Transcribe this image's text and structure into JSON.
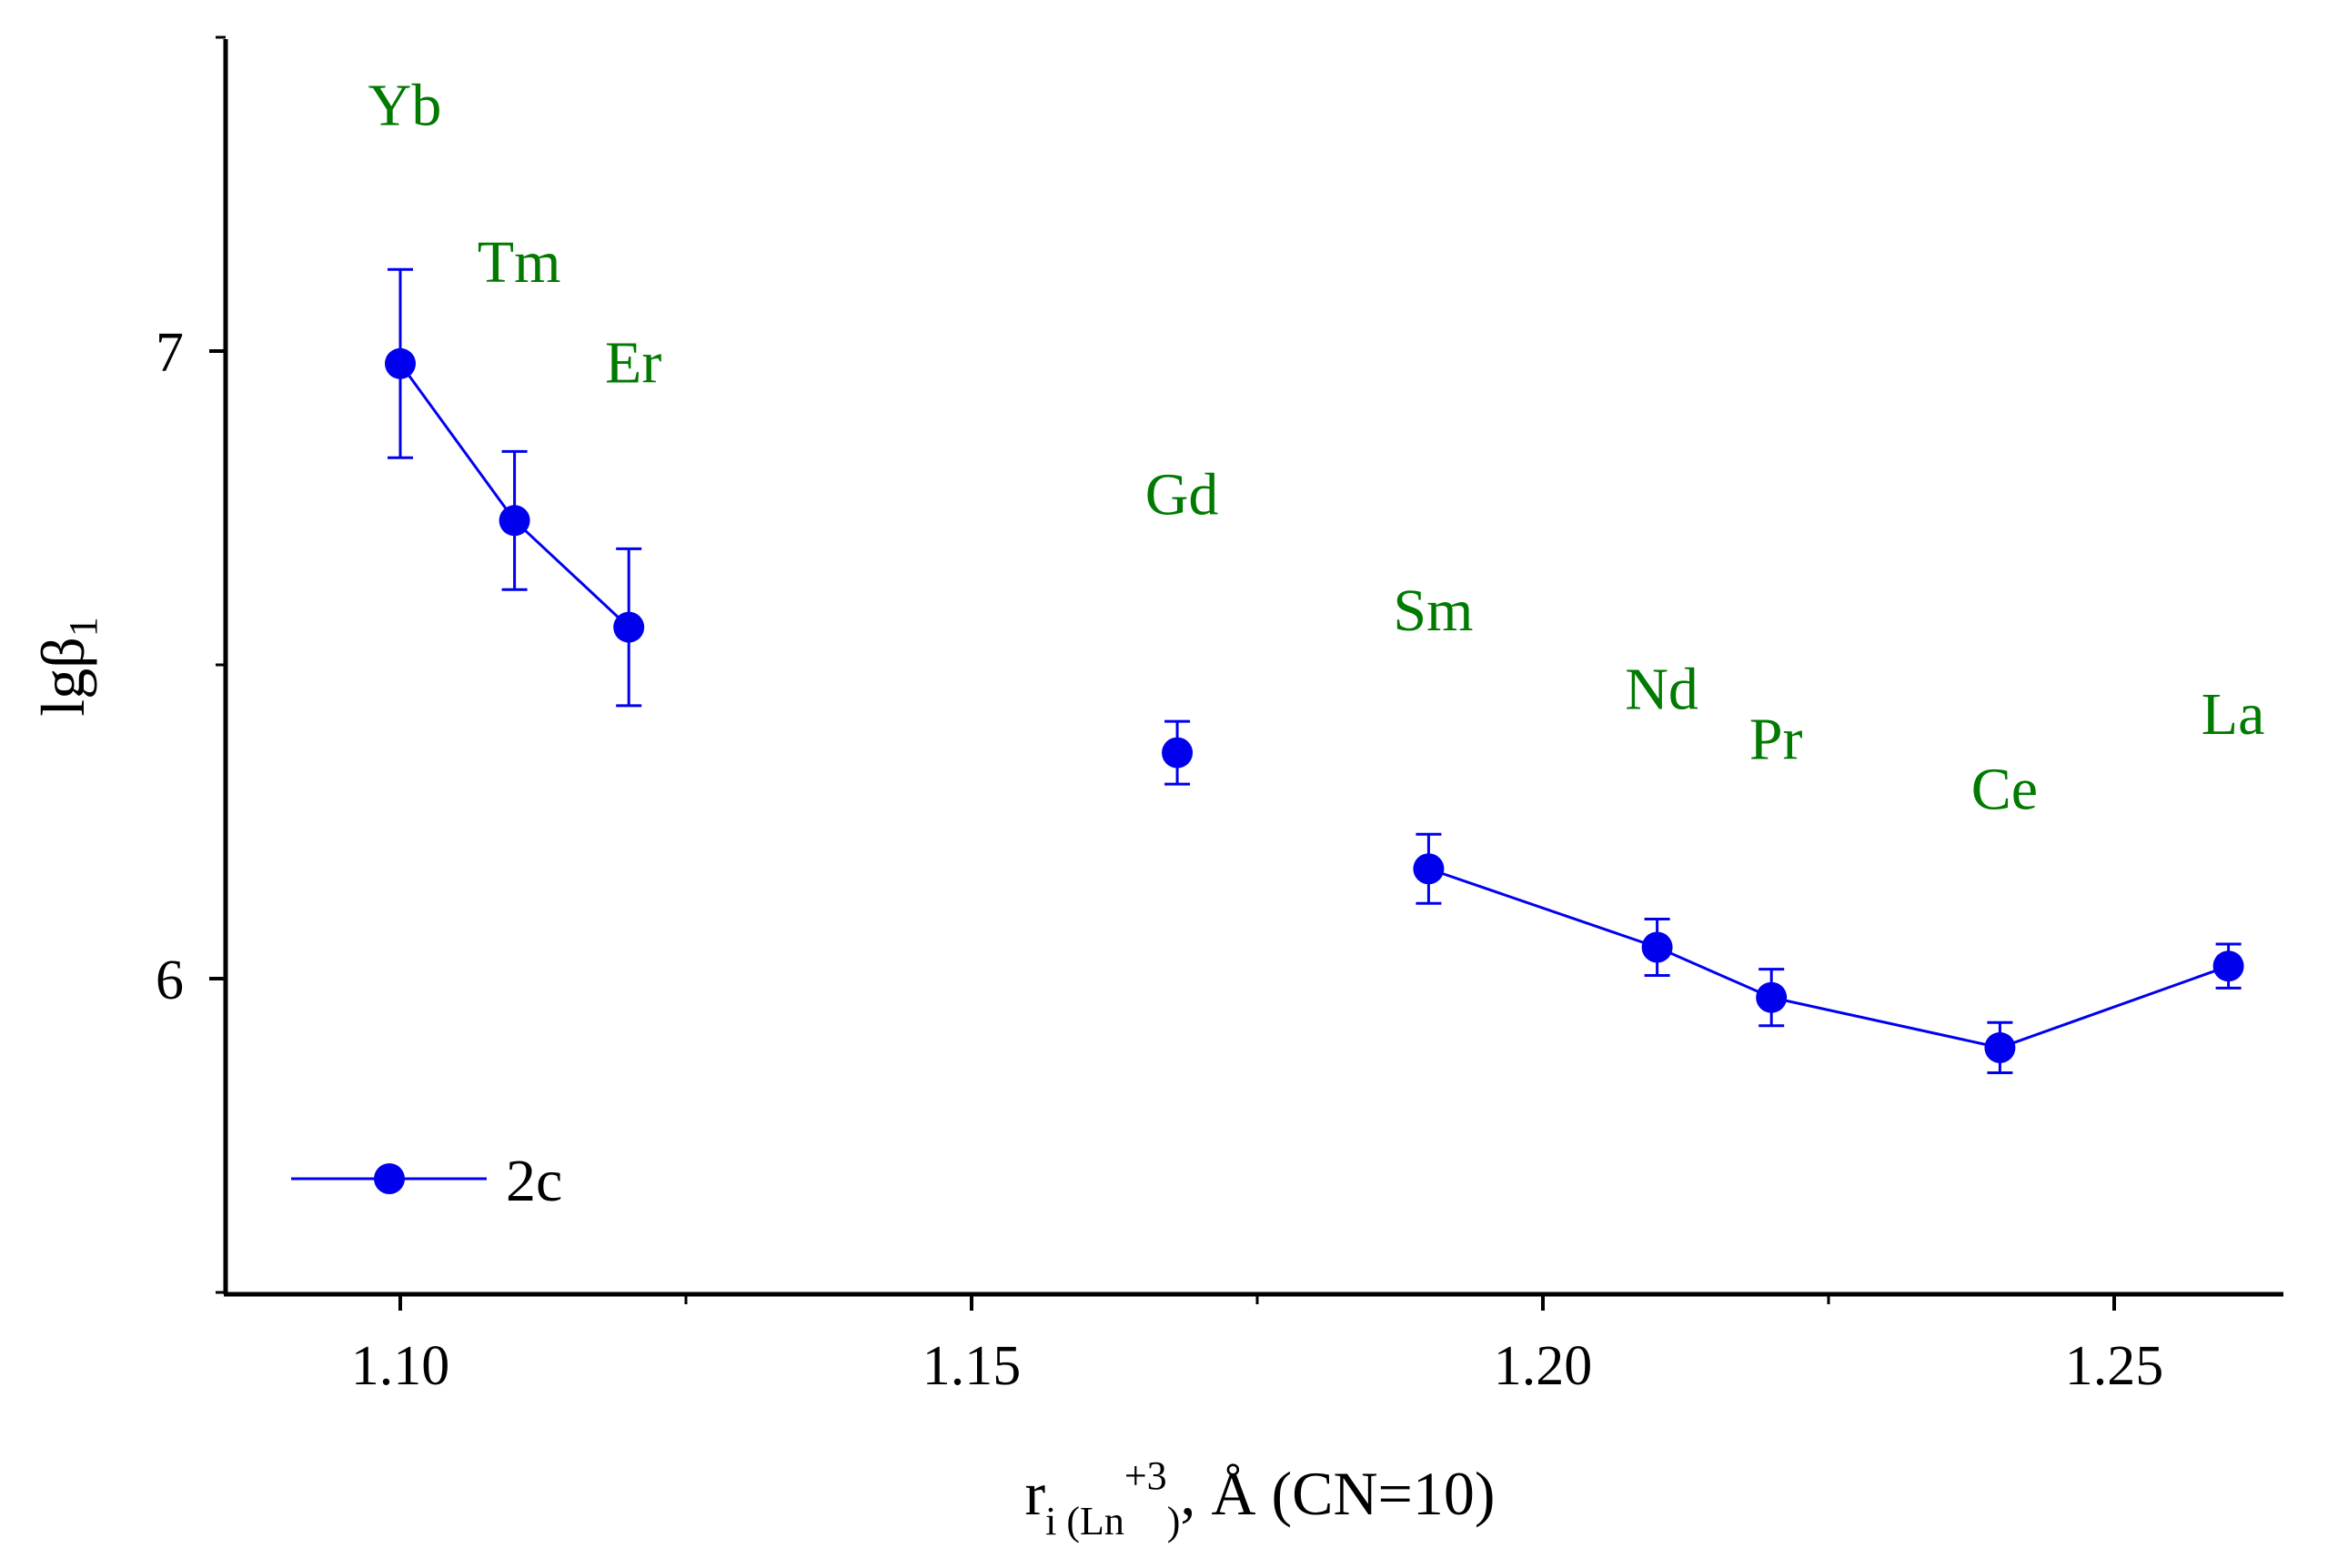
{
  "chart_data": {
    "type": "scatter",
    "title": "",
    "xlabel": "r i (Ln +3), Å (CN=10)",
    "xlabel_parts": {
      "base": "r",
      "sub": "i (Ln",
      "sup": "+3",
      "close": ")",
      "rest": ", Å (CN=10)"
    },
    "ylabel": "lgβ1",
    "ylabel_parts": {
      "base": "lgβ",
      "sub": "1"
    },
    "xlim": [
      1.084,
      1.265
    ],
    "ylim": [
      5.5,
      7.5
    ],
    "xticks": [
      1.1,
      1.15,
      1.2,
      1.25
    ],
    "xtick_labels": [
      "1.10",
      "1.15",
      "1.20",
      "1.25"
    ],
    "yticks": [
      6,
      7
    ],
    "ytick_labels": [
      "6",
      "7"
    ],
    "x_minor_step": 0.025,
    "y_minor_step": 0.5,
    "grid": false,
    "legend_position": "bottom-left",
    "series_color": "#0000ee",
    "label_color": "#007a00",
    "series": [
      {
        "name": "2c",
        "points": [
          {
            "label": "Yb",
            "x": 1.1,
            "y": 6.98,
            "err": 0.15,
            "label_y": 7.36
          },
          {
            "label": "Tm",
            "x": 1.11,
            "y": 6.73,
            "err": 0.11,
            "label_y": 7.11
          },
          {
            "label": "Er",
            "x": 1.12,
            "y": 6.56,
            "err": 0.125,
            "label_y": 6.95
          },
          {
            "label": "Gd",
            "x": 1.168,
            "y": 6.36,
            "err": 0.05,
            "label_y": 6.74
          },
          {
            "label": "Sm",
            "x": 1.19,
            "y": 6.175,
            "err": 0.055,
            "label_y": 6.555
          },
          {
            "label": "Nd",
            "x": 1.21,
            "y": 6.05,
            "err": 0.045,
            "label_y": 6.43
          },
          {
            "label": "Pr",
            "x": 1.22,
            "y": 5.97,
            "err": 0.045,
            "label_y": 6.35
          },
          {
            "label": "Ce",
            "x": 1.24,
            "y": 5.89,
            "err": 0.04,
            "label_y": 6.27
          },
          {
            "label": "La",
            "x": 1.26,
            "y": 6.02,
            "err": 0.035,
            "label_y": 6.39
          }
        ],
        "line_segments": [
          [
            0,
            1,
            2
          ],
          [
            4,
            5,
            6,
            7,
            8
          ]
        ]
      }
    ]
  }
}
